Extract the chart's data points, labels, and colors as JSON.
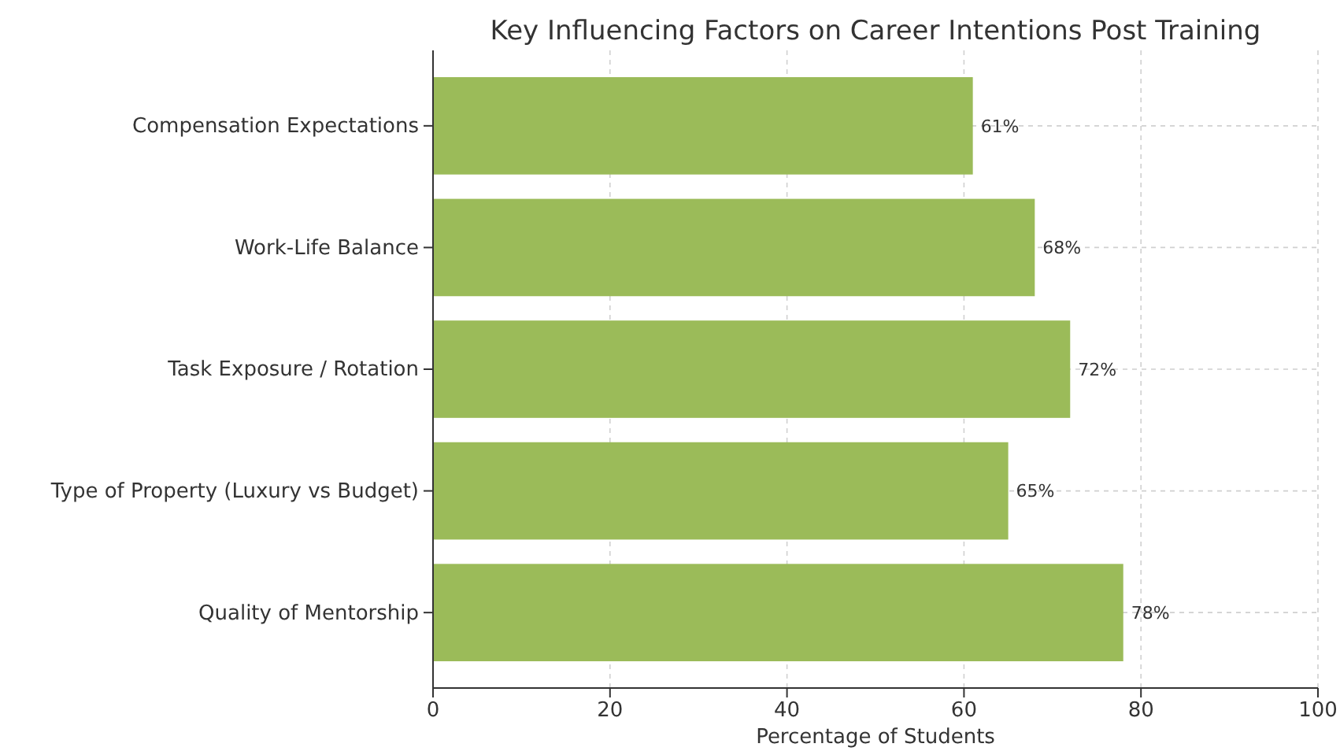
{
  "chart_data": {
    "type": "bar",
    "orientation": "horizontal",
    "title": "Key Influencing Factors on Career Intentions Post Training",
    "xlabel": "Percentage of Students",
    "categories": [
      "Compensation Expectations",
      "Work-Life Balance",
      "Task Exposure / Rotation",
      "Type of Property (Luxury vs Budget)",
      "Quality of Mentorship"
    ],
    "values": [
      61,
      68,
      72,
      65,
      78
    ],
    "value_labels": [
      "61%",
      "68%",
      "72%",
      "65%",
      "78%"
    ],
    "color": "#9bbb59",
    "xlim": [
      0,
      100
    ],
    "xticks": [
      0,
      20,
      40,
      60,
      80,
      100
    ],
    "grid": true
  }
}
